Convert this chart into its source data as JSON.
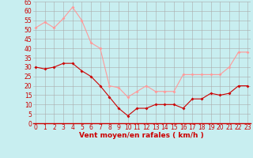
{
  "hours": [
    0,
    1,
    2,
    3,
    4,
    5,
    6,
    7,
    8,
    9,
    10,
    11,
    12,
    13,
    14,
    15,
    16,
    17,
    18,
    19,
    20,
    21,
    22,
    23
  ],
  "wind_avg": [
    30,
    29,
    30,
    32,
    32,
    28,
    25,
    20,
    14,
    8,
    4,
    8,
    8,
    10,
    10,
    10,
    8,
    13,
    13,
    16,
    15,
    16,
    20,
    20
  ],
  "wind_gust": [
    51,
    54,
    51,
    56,
    62,
    55,
    43,
    40,
    20,
    19,
    14,
    17,
    20,
    17,
    17,
    17,
    26,
    26,
    26,
    26,
    26,
    30,
    38,
    38
  ],
  "avg_color": "#cc0000",
  "gust_color": "#ff9999",
  "bg_color": "#c8eef0",
  "grid_color": "#aaaaaa",
  "xlabel": "Vent moyen/en rafales ( km/h )",
  "xlabel_color": "#cc0000",
  "tick_color": "#cc0000",
  "spine_color": "#cc0000",
  "ylim": [
    0,
    65
  ],
  "yticks": [
    0,
    5,
    10,
    15,
    20,
    25,
    30,
    35,
    40,
    45,
    50,
    55,
    60,
    65
  ],
  "tick_fontsize": 5.5,
  "xlabel_fontsize": 6.5,
  "marker_size": 2.0,
  "line_width": 0.8
}
